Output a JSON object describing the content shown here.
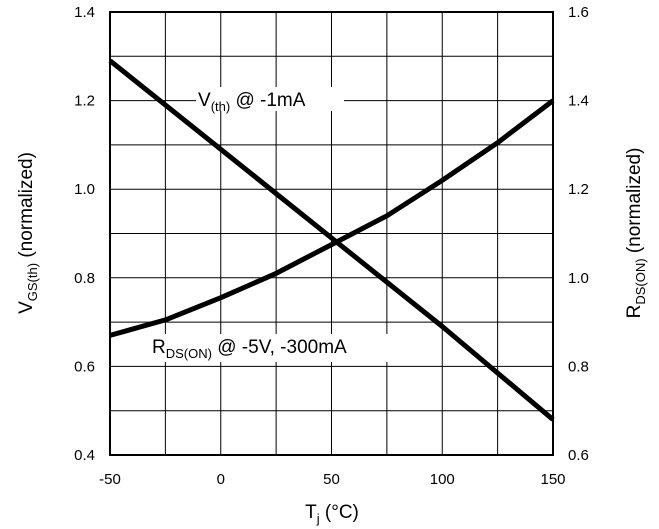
{
  "chart_data": {
    "type": "line",
    "x_axis": {
      "label_main": "T",
      "label_sub": "j",
      "label_unit": " (°C)",
      "ticks": [
        -50,
        0,
        50,
        100,
        150
      ],
      "range": [
        -50,
        150
      ]
    },
    "y_axis_left": {
      "label_main": "V",
      "label_sub": "GS(th)",
      "label_rest": " (normalized)",
      "ticks": [
        "0.4",
        "0.6",
        "0.8",
        "1.0",
        "1.2",
        "1.4"
      ],
      "range": [
        0.4,
        1.4
      ]
    },
    "y_axis_right": {
      "label_main": "R",
      "label_sub": "DS(ON)",
      "label_rest": " (normalized)",
      "ticks": [
        "0.6",
        "0.8",
        "1.0",
        "1.2",
        "1.4",
        "1.6"
      ],
      "range": [
        0.6,
        1.6
      ]
    },
    "grid": true,
    "series": [
      {
        "axis": "left",
        "annotation_main": "V",
        "annotation_sub": "(th)",
        "annotation_rest": " @ -1mA",
        "x": [
          -50,
          0,
          50,
          100,
          150
        ],
        "y": [
          1.29,
          1.09,
          0.89,
          0.69,
          0.48
        ]
      },
      {
        "axis": "right",
        "annotation_main": "R",
        "annotation_sub": "DS(ON)",
        "annotation_rest": " @ -5V, -300mA",
        "x": [
          -50,
          -25,
          0,
          25,
          50,
          75,
          100,
          125,
          150
        ],
        "y": [
          0.87,
          0.905,
          0.955,
          1.01,
          1.075,
          1.14,
          1.22,
          1.305,
          1.4
        ]
      }
    ]
  }
}
